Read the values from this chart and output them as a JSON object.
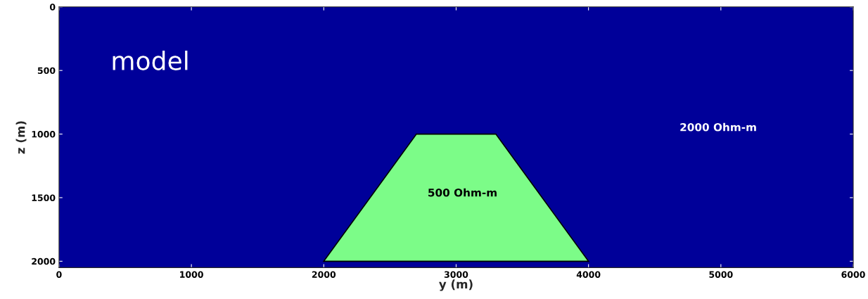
{
  "chart_data": {
    "type": "area",
    "xlabel": "y (m)",
    "ylabel": "z (m)",
    "xlim": [
      0,
      6000
    ],
    "xticks": [
      0,
      1000,
      2000,
      3000,
      4000,
      5000,
      6000
    ],
    "ylim": [
      2050,
      0
    ],
    "yticks": [
      0,
      500,
      1000,
      1500,
      2000
    ],
    "series": [
      {
        "color": "#7cfc88",
        "x": [
          2000,
          2700,
          3300,
          4000
        ],
        "values": [
          2000,
          1000,
          1000,
          2000
        ]
      }
    ],
    "bands": [
      {
        "axis": "y",
        "from": 0,
        "to": 2050,
        "color": "#000099"
      }
    ],
    "annotations": [
      "model",
      "2000 Ohm-m",
      "500 Ohm-m"
    ],
    "grid": false,
    "legend": false
  }
}
